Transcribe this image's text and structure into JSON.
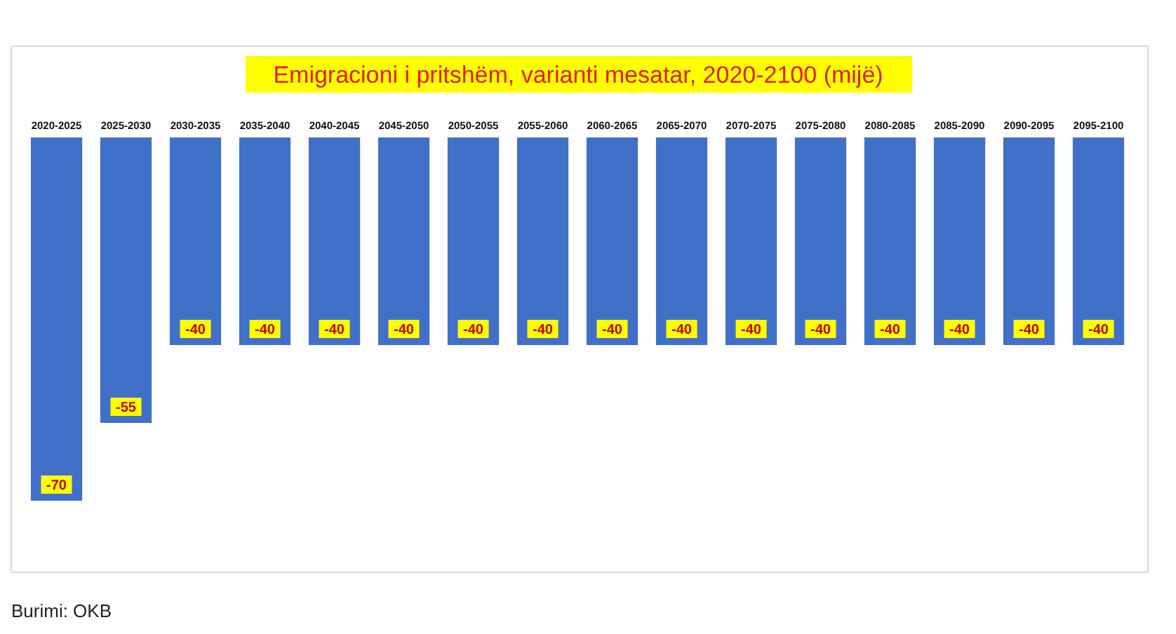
{
  "chart_data": {
    "type": "bar",
    "title": "Emigracioni i pritshëm, varianti mesatar, 2020-2100 (mijë)",
    "categories": [
      "2020-2025",
      "2025-2030",
      "2030-2035",
      "2035-2040",
      "2040-2045",
      "2045-2050",
      "2050-2055",
      "2055-2060",
      "2060-2065",
      "2065-2070",
      "2070-2075",
      "2075-2080",
      "2080-2085",
      "2085-2090",
      "2090-2095",
      "2095-2100"
    ],
    "values": [
      -70,
      -55,
      -40,
      -40,
      -40,
      -40,
      -40,
      -40,
      -40,
      -40,
      -40,
      -40,
      -40,
      -40,
      -40,
      -40
    ],
    "color": "#4170c8",
    "data_labels": true,
    "annotations": [
      "Burimi: OKB"
    ]
  }
}
